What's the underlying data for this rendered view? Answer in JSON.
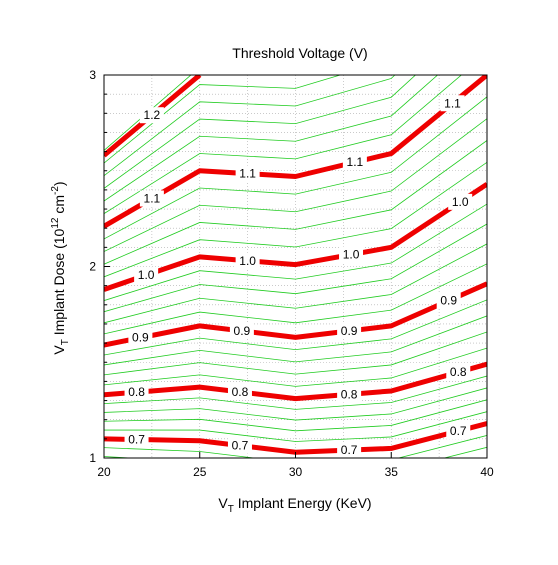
{
  "chart_data": {
    "type": "contour",
    "title": "Threshold Voltage (V)",
    "xlabel": {
      "main": "V",
      "sub": "T",
      "rest": " Implant Energy (KeV)"
    },
    "ylabel": {
      "main": "V",
      "sub": "T",
      "rest": " Implant Dose (10",
      "sup1": "12",
      "mid": " cm",
      "sup2": "-2",
      "end": ")"
    },
    "xlim": [
      20,
      40
    ],
    "ylim": [
      1,
      3
    ],
    "x_ticks": [
      "20",
      "25",
      "30",
      "35",
      "40"
    ],
    "y_ticks": [
      "1",
      "2",
      "3"
    ],
    "grid": true,
    "colors": {
      "major": "#ee0000",
      "minor": "#22cc22",
      "grid": "#aaaaaa",
      "axis": "#000000"
    },
    "x_knots": [
      20,
      25,
      30,
      35,
      40
    ],
    "major_contours": [
      {
        "level": "0.7",
        "values": [
          1.1,
          1.09,
          1.03,
          1.05,
          1.18
        ],
        "label_x": [
          21.7,
          27.1,
          32.8,
          38.5
        ]
      },
      {
        "level": "0.8",
        "values": [
          1.33,
          1.37,
          1.31,
          1.35,
          1.49
        ],
        "label_x": [
          21.7,
          27.1,
          32.8,
          38.5
        ]
      },
      {
        "level": "0.9",
        "values": [
          1.59,
          1.69,
          1.63,
          1.69,
          1.91
        ],
        "label_x": [
          21.9,
          27.2,
          32.8,
          38.0
        ]
      },
      {
        "level": "1.0",
        "values": [
          1.88,
          2.05,
          2.01,
          2.1,
          2.43
        ],
        "label_x": [
          22.2,
          27.5,
          32.9,
          38.6
        ]
      },
      {
        "level": "1.1",
        "values": [
          2.21,
          2.5,
          2.47,
          2.59,
          3.0
        ],
        "label_x": [
          22.5,
          27.5,
          33.1,
          38.2
        ]
      },
      {
        "level": "1.2",
        "values": [
          2.58,
          3.0
        ],
        "x_end": 25,
        "label_x": [
          22.5
        ]
      }
    ],
    "minor_contour_count": 36
  }
}
